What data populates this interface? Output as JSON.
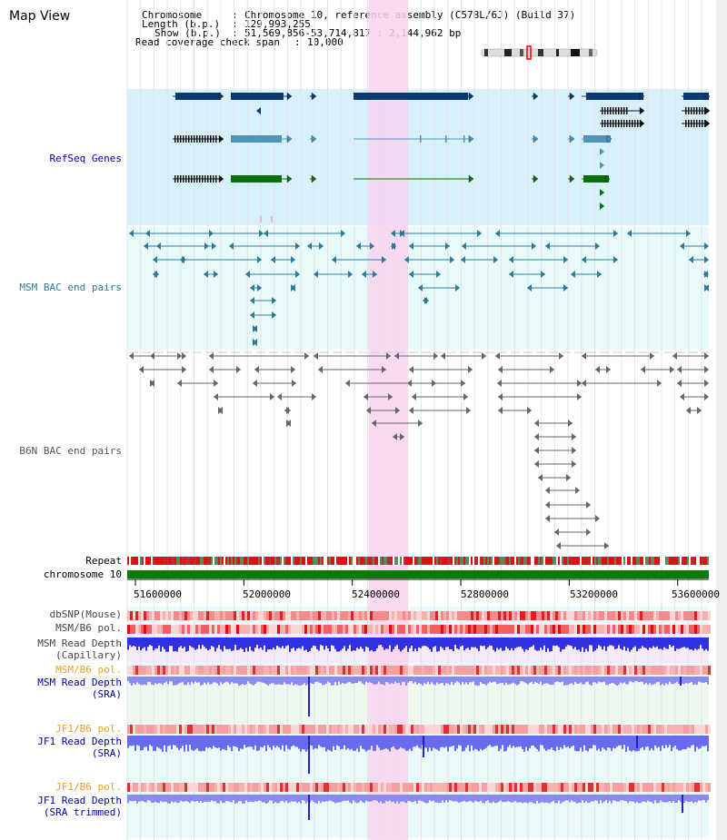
{
  "title": "Map View",
  "info": {
    "chromosome_label": "Chromosome",
    "chromosome_value": "Chromosome 10, reference assembly (C57BL/6J) (Build 37)",
    "length_label": "Length (b.p.)",
    "length_value": "129,993,255",
    "show_label": "Show (b.p.)",
    "show_value": "51,569,856-53,714,817 : 2,144,962 bp",
    "coverage_label": "Read coverage check span",
    "coverage_value": "10,000"
  },
  "tracks": {
    "refseq": "RefSeq Genes",
    "msm_bac": "MSM BAC end pairs",
    "b6n_bac": "B6N BAC end pairs",
    "repeat": "Repeat",
    "chromosome": "chromosome 10",
    "dbsnp": "dbSNP(Mouse)",
    "msm_b6_pol": "MSM/B6 pol.",
    "msm_depth_cap": "MSM Read Depth\n(Capillary)",
    "msm_b6_pol2": "MSM/B6 pol.",
    "msm_depth_sra": "MSM Read Depth\n(SRA)",
    "jf1_b6_pol": "JF1/B6 pol.",
    "jf1_depth_sra": "JF1 Read Depth\n(SRA)",
    "jf1_b6_pol2": "JF1/B6 pol.",
    "jf1_depth_trim": "JF1 Read Depth\n(SRA trimmed)"
  },
  "axis": {
    "ticks": [
      "51600000",
      "52000000",
      "52400000",
      "52800000",
      "53200000",
      "53600000"
    ],
    "range": [
      51569856,
      53714817
    ]
  },
  "highlight": {
    "start": 52460000,
    "end": 52605000
  },
  "colors": {
    "refseq_bg": "#d8f0fa",
    "bac_bg": "#e8fafa",
    "highlight": "#f8d4f0",
    "refseq_dark": "#0a3a6e",
    "refseq_mid": "#4f94b8",
    "refseq_green": "#0a6e0a",
    "msm_bac": "#2f7a99",
    "b6n_bac": "#666666",
    "chromosome": "#0a7a0a",
    "depth_blue": "#3030e0",
    "depth_light": "#8a8af0"
  }
}
